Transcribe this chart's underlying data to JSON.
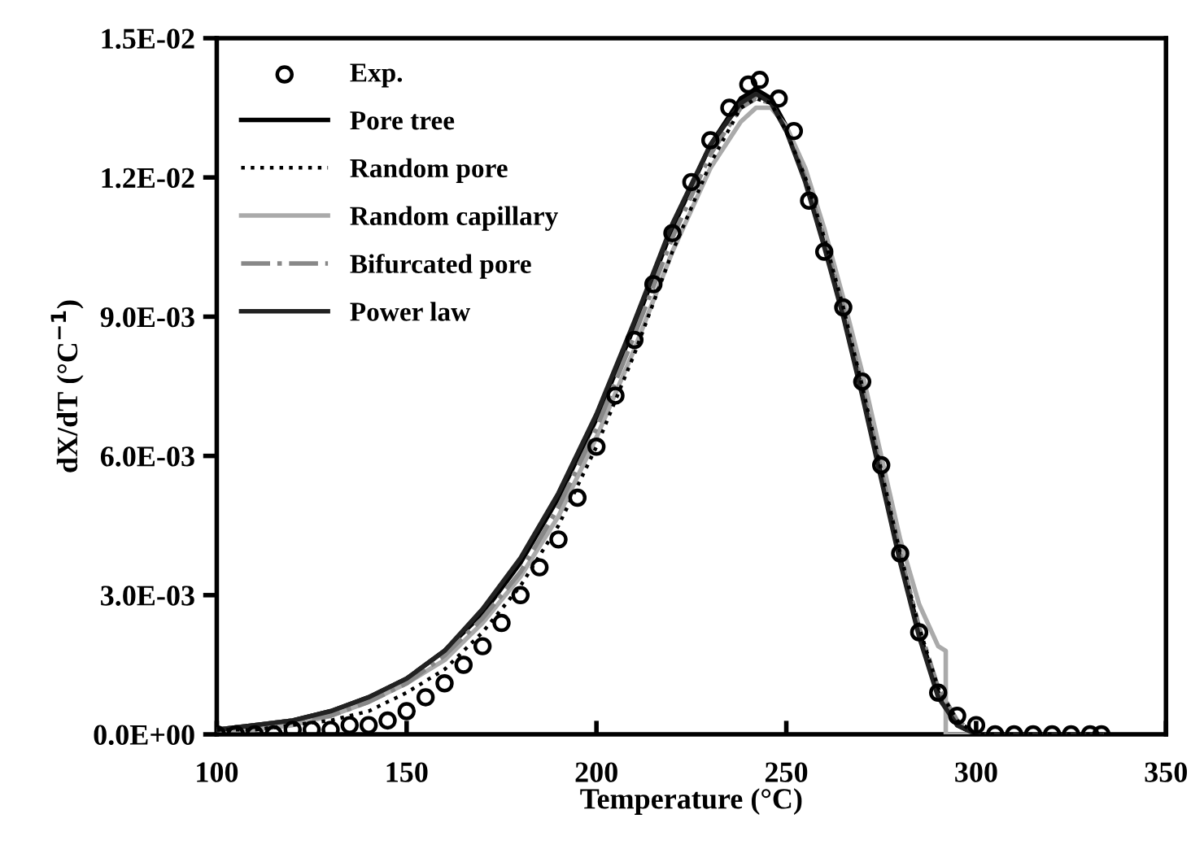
{
  "chart_data": {
    "type": "line",
    "xlabel": "Temperature (°C)",
    "ylabel": "dX/dT (°C$^{−1}$)",
    "xlim": [
      100,
      350
    ],
    "xticks": [
      100,
      150,
      200,
      250,
      300,
      350
    ],
    "ylim": [
      0,
      0.015
    ],
    "yticks": [
      {
        "value": 0,
        "label": "0.0E+00"
      },
      {
        "value": 0.003,
        "label": "3.0E-03"
      },
      {
        "value": 0.006,
        "label": "6.0E-03"
      },
      {
        "value": 0.009,
        "label": "9.0E-03"
      },
      {
        "value": 0.012,
        "label": "1.2E-02"
      },
      {
        "value": 0.015,
        "label": "1.5E-02"
      }
    ],
    "grid": false,
    "legend": "top left",
    "series": [
      {
        "name": "Exp.",
        "type": "scatter",
        "marker": "circle",
        "color": "#000000",
        "x": [
          100,
          105,
          110,
          115,
          120,
          125,
          130,
          135,
          140,
          145,
          150,
          155,
          160,
          165,
          170,
          175,
          180,
          185,
          190,
          195,
          200,
          205,
          210,
          215,
          220,
          225,
          230,
          235,
          240,
          243,
          248,
          252,
          256,
          260,
          265,
          270,
          275,
          280,
          285,
          290,
          295,
          300,
          305,
          310,
          315,
          320,
          325,
          330,
          333
        ],
        "values": [
          0,
          0,
          0,
          0,
          0.0001,
          0.0001,
          0.0001,
          0.0002,
          0.0002,
          0.0003,
          0.0005,
          0.0008,
          0.0011,
          0.0015,
          0.0019,
          0.0024,
          0.003,
          0.0036,
          0.0042,
          0.0051,
          0.0062,
          0.0073,
          0.0085,
          0.0097,
          0.0108,
          0.0119,
          0.0128,
          0.0135,
          0.014,
          0.0141,
          0.0137,
          0.013,
          0.0115,
          0.0104,
          0.0092,
          0.0076,
          0.0058,
          0.0039,
          0.0022,
          0.0009,
          0.0004,
          0.0002,
          0,
          0,
          0,
          0,
          0,
          0,
          0
        ]
      },
      {
        "name": "Pore tree",
        "line_style": "solid",
        "color": "#000000",
        "x": [
          100,
          110,
          120,
          130,
          140,
          150,
          160,
          170,
          180,
          190,
          200,
          210,
          220,
          230,
          238,
          242,
          246,
          250,
          255,
          260,
          265,
          270,
          275,
          280,
          285,
          290,
          295,
          300,
          333
        ],
        "values": [
          0.0001,
          0.0002,
          0.0003,
          0.0005,
          0.0008,
          0.0012,
          0.0018,
          0.0026,
          0.0037,
          0.0051,
          0.0068,
          0.0088,
          0.0109,
          0.0127,
          0.0137,
          0.0139,
          0.0137,
          0.0131,
          0.012,
          0.0106,
          0.0091,
          0.0074,
          0.0056,
          0.0038,
          0.0022,
          0.0009,
          0.0002,
          0,
          0
        ]
      },
      {
        "name": "Random pore",
        "line_style": "dotted",
        "color": "#000000",
        "x": [
          100,
          110,
          120,
          130,
          140,
          150,
          160,
          170,
          180,
          190,
          200,
          210,
          220,
          230,
          238,
          242,
          246,
          250,
          255,
          260,
          265,
          270,
          275,
          280,
          285,
          290,
          295,
          300,
          333
        ],
        "values": [
          0.0001,
          0.0001,
          0.0002,
          0.0003,
          0.0005,
          0.0009,
          0.0014,
          0.0022,
          0.0032,
          0.0045,
          0.0062,
          0.0082,
          0.0104,
          0.0123,
          0.0135,
          0.0137,
          0.0136,
          0.013,
          0.012,
          0.0107,
          0.0092,
          0.0075,
          0.0057,
          0.0039,
          0.0023,
          0.001,
          0.0003,
          0,
          0
        ]
      },
      {
        "name": "Random capillary",
        "line_style": "solid",
        "color": "#aaaaaa",
        "x": [
          100,
          110,
          120,
          130,
          140,
          150,
          160,
          170,
          180,
          190,
          200,
          210,
          220,
          230,
          238,
          242,
          246,
          250,
          255,
          260,
          265,
          270,
          275,
          280,
          285,
          290,
          292,
          292,
          333
        ],
        "values": [
          0.0001,
          0.0001,
          0.0002,
          0.0004,
          0.0007,
          0.0011,
          0.0016,
          0.0024,
          0.0034,
          0.0047,
          0.0064,
          0.0083,
          0.0104,
          0.0122,
          0.0132,
          0.0135,
          0.0135,
          0.0131,
          0.0122,
          0.0109,
          0.0094,
          0.0078,
          0.006,
          0.0042,
          0.0028,
          0.0019,
          0.0018,
          0,
          0
        ]
      },
      {
        "name": "Bifurcated pore",
        "line_style": "dashdot",
        "color": "#888888",
        "x": [
          100,
          110,
          120,
          130,
          140,
          150,
          160,
          170,
          180,
          190,
          200,
          210,
          220,
          230,
          238,
          242,
          246,
          250,
          255,
          260,
          265,
          270,
          275,
          280,
          285,
          290,
          295,
          300,
          333
        ],
        "values": [
          0.0001,
          0.0002,
          0.0003,
          0.0004,
          0.0007,
          0.0011,
          0.0017,
          0.0025,
          0.0035,
          0.0049,
          0.0066,
          0.0086,
          0.0107,
          0.0125,
          0.0135,
          0.0137,
          0.0136,
          0.013,
          0.012,
          0.0107,
          0.0092,
          0.0075,
          0.0057,
          0.0039,
          0.0023,
          0.001,
          0.0003,
          0,
          0
        ]
      },
      {
        "name": "Power law",
        "line_style": "solid",
        "color": "#222222",
        "x": [
          100,
          110,
          120,
          130,
          140,
          150,
          160,
          170,
          180,
          190,
          200,
          210,
          220,
          230,
          238,
          242,
          246,
          250,
          255,
          260,
          265,
          270,
          275,
          280,
          285,
          290,
          295,
          300,
          333
        ],
        "values": [
          0.0001,
          0.0002,
          0.0003,
          0.0005,
          0.0008,
          0.0012,
          0.0018,
          0.0027,
          0.0038,
          0.0052,
          0.0069,
          0.0089,
          0.011,
          0.0127,
          0.0136,
          0.0138,
          0.0136,
          0.013,
          0.0119,
          0.0105,
          0.009,
          0.0073,
          0.0055,
          0.0037,
          0.0021,
          0.0008,
          0.0002,
          0,
          0
        ]
      }
    ]
  }
}
